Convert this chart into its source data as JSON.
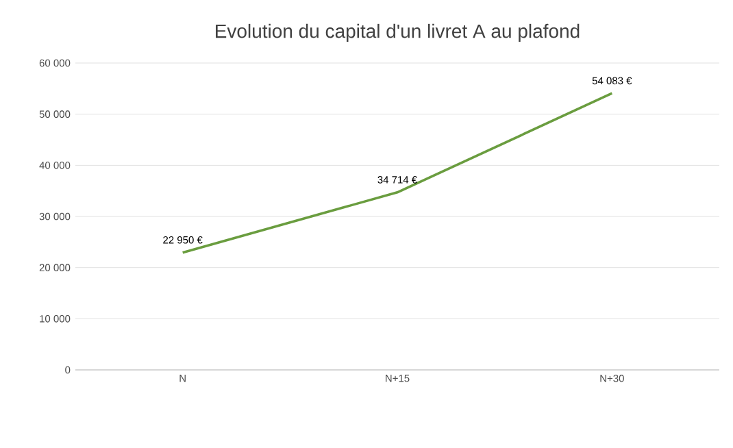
{
  "chart_data": {
    "type": "line",
    "title": "Evolution du capital d'un livret A au plafond",
    "categories": [
      "N",
      "N+15",
      "N+30"
    ],
    "values": [
      22950,
      34714,
      54083
    ],
    "value_labels": [
      "22 950 €",
      "34 714 €",
      "54 083 €"
    ],
    "color": "#6a9d3f",
    "ylim": [
      0,
      60000
    ],
    "yticks": [
      {
        "value": 0,
        "label": "0"
      },
      {
        "value": 10000,
        "label": "10 000"
      },
      {
        "value": 20000,
        "label": "20 000"
      },
      {
        "value": 30000,
        "label": "30 000"
      },
      {
        "value": 40000,
        "label": "40 000"
      },
      {
        "value": 50000,
        "label": "50 000"
      },
      {
        "value": 60000,
        "label": "60 000"
      }
    ],
    "grid": "y",
    "marker": "none",
    "line_style": "solid"
  }
}
